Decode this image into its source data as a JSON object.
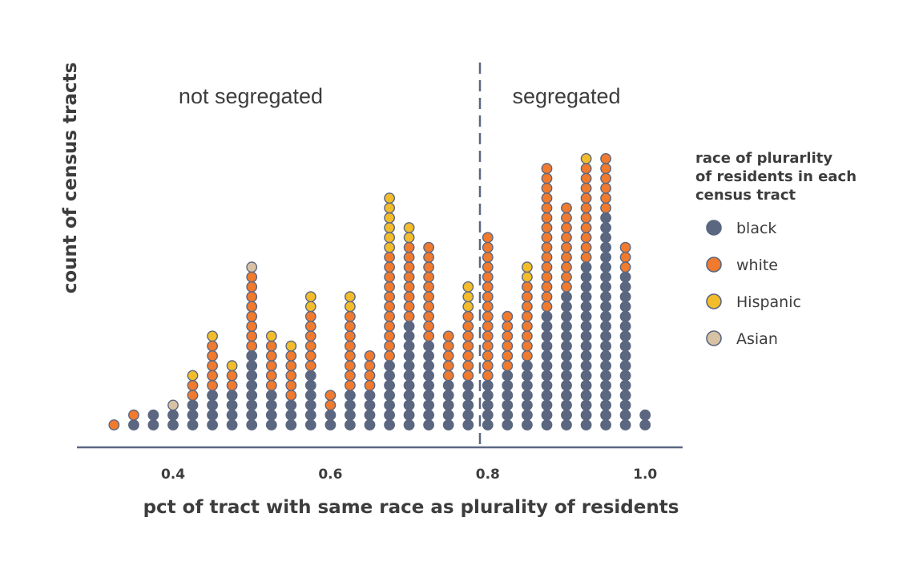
{
  "chart_data": {
    "type": "dot-histogram",
    "title": "",
    "xlabel": "pct of tract with same race as plurality of residents",
    "ylabel": "count of census tracts",
    "xlim": [
      0.32,
      1.02
    ],
    "x_ticks": [
      "0.4",
      "0.6",
      "0.8",
      "1.0"
    ],
    "x_tick_values": [
      0.4,
      0.6,
      0.8,
      1.0
    ],
    "threshold": 0.79,
    "region_labels": {
      "left": "not segregated",
      "right": "segregated"
    },
    "grid": false,
    "legend": {
      "title": [
        "race of plurarlity",
        "of residents in each",
        "census tract"
      ],
      "placement": "right",
      "items": [
        {
          "key": "black",
          "label": "black",
          "color": "#5b6780"
        },
        {
          "key": "white",
          "label": "white",
          "color": "#f07a2e"
        },
        {
          "key": "hispanic",
          "label": "Hispanic",
          "color": "#f2bc2a"
        },
        {
          "key": "asian",
          "label": "Asian",
          "color": "#d8c2a4"
        }
      ]
    },
    "series_order": [
      "black",
      "white",
      "hispanic",
      "asian"
    ],
    "bins": [
      {
        "x": 0.325,
        "black": 0,
        "white": 1,
        "hispanic": 0,
        "asian": 0
      },
      {
        "x": 0.35,
        "black": 1,
        "white": 1,
        "hispanic": 0,
        "asian": 0
      },
      {
        "x": 0.375,
        "black": 2,
        "white": 0,
        "hispanic": 0,
        "asian": 0
      },
      {
        "x": 0.4,
        "black": 2,
        "white": 0,
        "hispanic": 0,
        "asian": 1
      },
      {
        "x": 0.425,
        "black": 3,
        "white": 2,
        "hispanic": 1,
        "asian": 0
      },
      {
        "x": 0.45,
        "black": 4,
        "white": 5,
        "hispanic": 1,
        "asian": 0
      },
      {
        "x": 0.475,
        "black": 4,
        "white": 2,
        "hispanic": 1,
        "asian": 0
      },
      {
        "x": 0.5,
        "black": 8,
        "white": 8,
        "hispanic": 0,
        "asian": 1
      },
      {
        "x": 0.525,
        "black": 4,
        "white": 5,
        "hispanic": 1,
        "asian": 0
      },
      {
        "x": 0.55,
        "black": 3,
        "white": 5,
        "hispanic": 1,
        "asian": 0
      },
      {
        "x": 0.575,
        "black": 6,
        "white": 6,
        "hispanic": 2,
        "asian": 0
      },
      {
        "x": 0.6,
        "black": 2,
        "white": 2,
        "hispanic": 0,
        "asian": 0
      },
      {
        "x": 0.625,
        "black": 4,
        "white": 8,
        "hispanic": 2,
        "asian": 0
      },
      {
        "x": 0.65,
        "black": 4,
        "white": 4,
        "hispanic": 0,
        "asian": 0
      },
      {
        "x": 0.675,
        "black": 7,
        "white": 11,
        "hispanic": 6,
        "asian": 0
      },
      {
        "x": 0.7,
        "black": 11,
        "white": 8,
        "hispanic": 2,
        "asian": 0
      },
      {
        "x": 0.725,
        "black": 9,
        "white": 10,
        "hispanic": 0,
        "asian": 0
      },
      {
        "x": 0.75,
        "black": 5,
        "white": 5,
        "hispanic": 0,
        "asian": 0
      },
      {
        "x": 0.775,
        "black": 5,
        "white": 7,
        "hispanic": 3,
        "asian": 0
      },
      {
        "x": 0.8,
        "black": 5,
        "white": 15,
        "hispanic": 0,
        "asian": 0
      },
      {
        "x": 0.825,
        "black": 6,
        "white": 6,
        "hispanic": 0,
        "asian": 0
      },
      {
        "x": 0.85,
        "black": 7,
        "white": 8,
        "hispanic": 2,
        "asian": 0
      },
      {
        "x": 0.875,
        "black": 12,
        "white": 15,
        "hispanic": 0,
        "asian": 0
      },
      {
        "x": 0.9,
        "black": 14,
        "white": 9,
        "hispanic": 0,
        "asian": 0
      },
      {
        "x": 0.925,
        "black": 17,
        "white": 10,
        "hispanic": 1,
        "asian": 0
      },
      {
        "x": 0.95,
        "black": 22,
        "white": 6,
        "hispanic": 0,
        "asian": 0
      },
      {
        "x": 0.975,
        "black": 16,
        "white": 3,
        "hispanic": 0,
        "asian": 0
      },
      {
        "x": 1.0,
        "black": 2,
        "white": 0,
        "hispanic": 0,
        "asian": 0
      }
    ]
  }
}
